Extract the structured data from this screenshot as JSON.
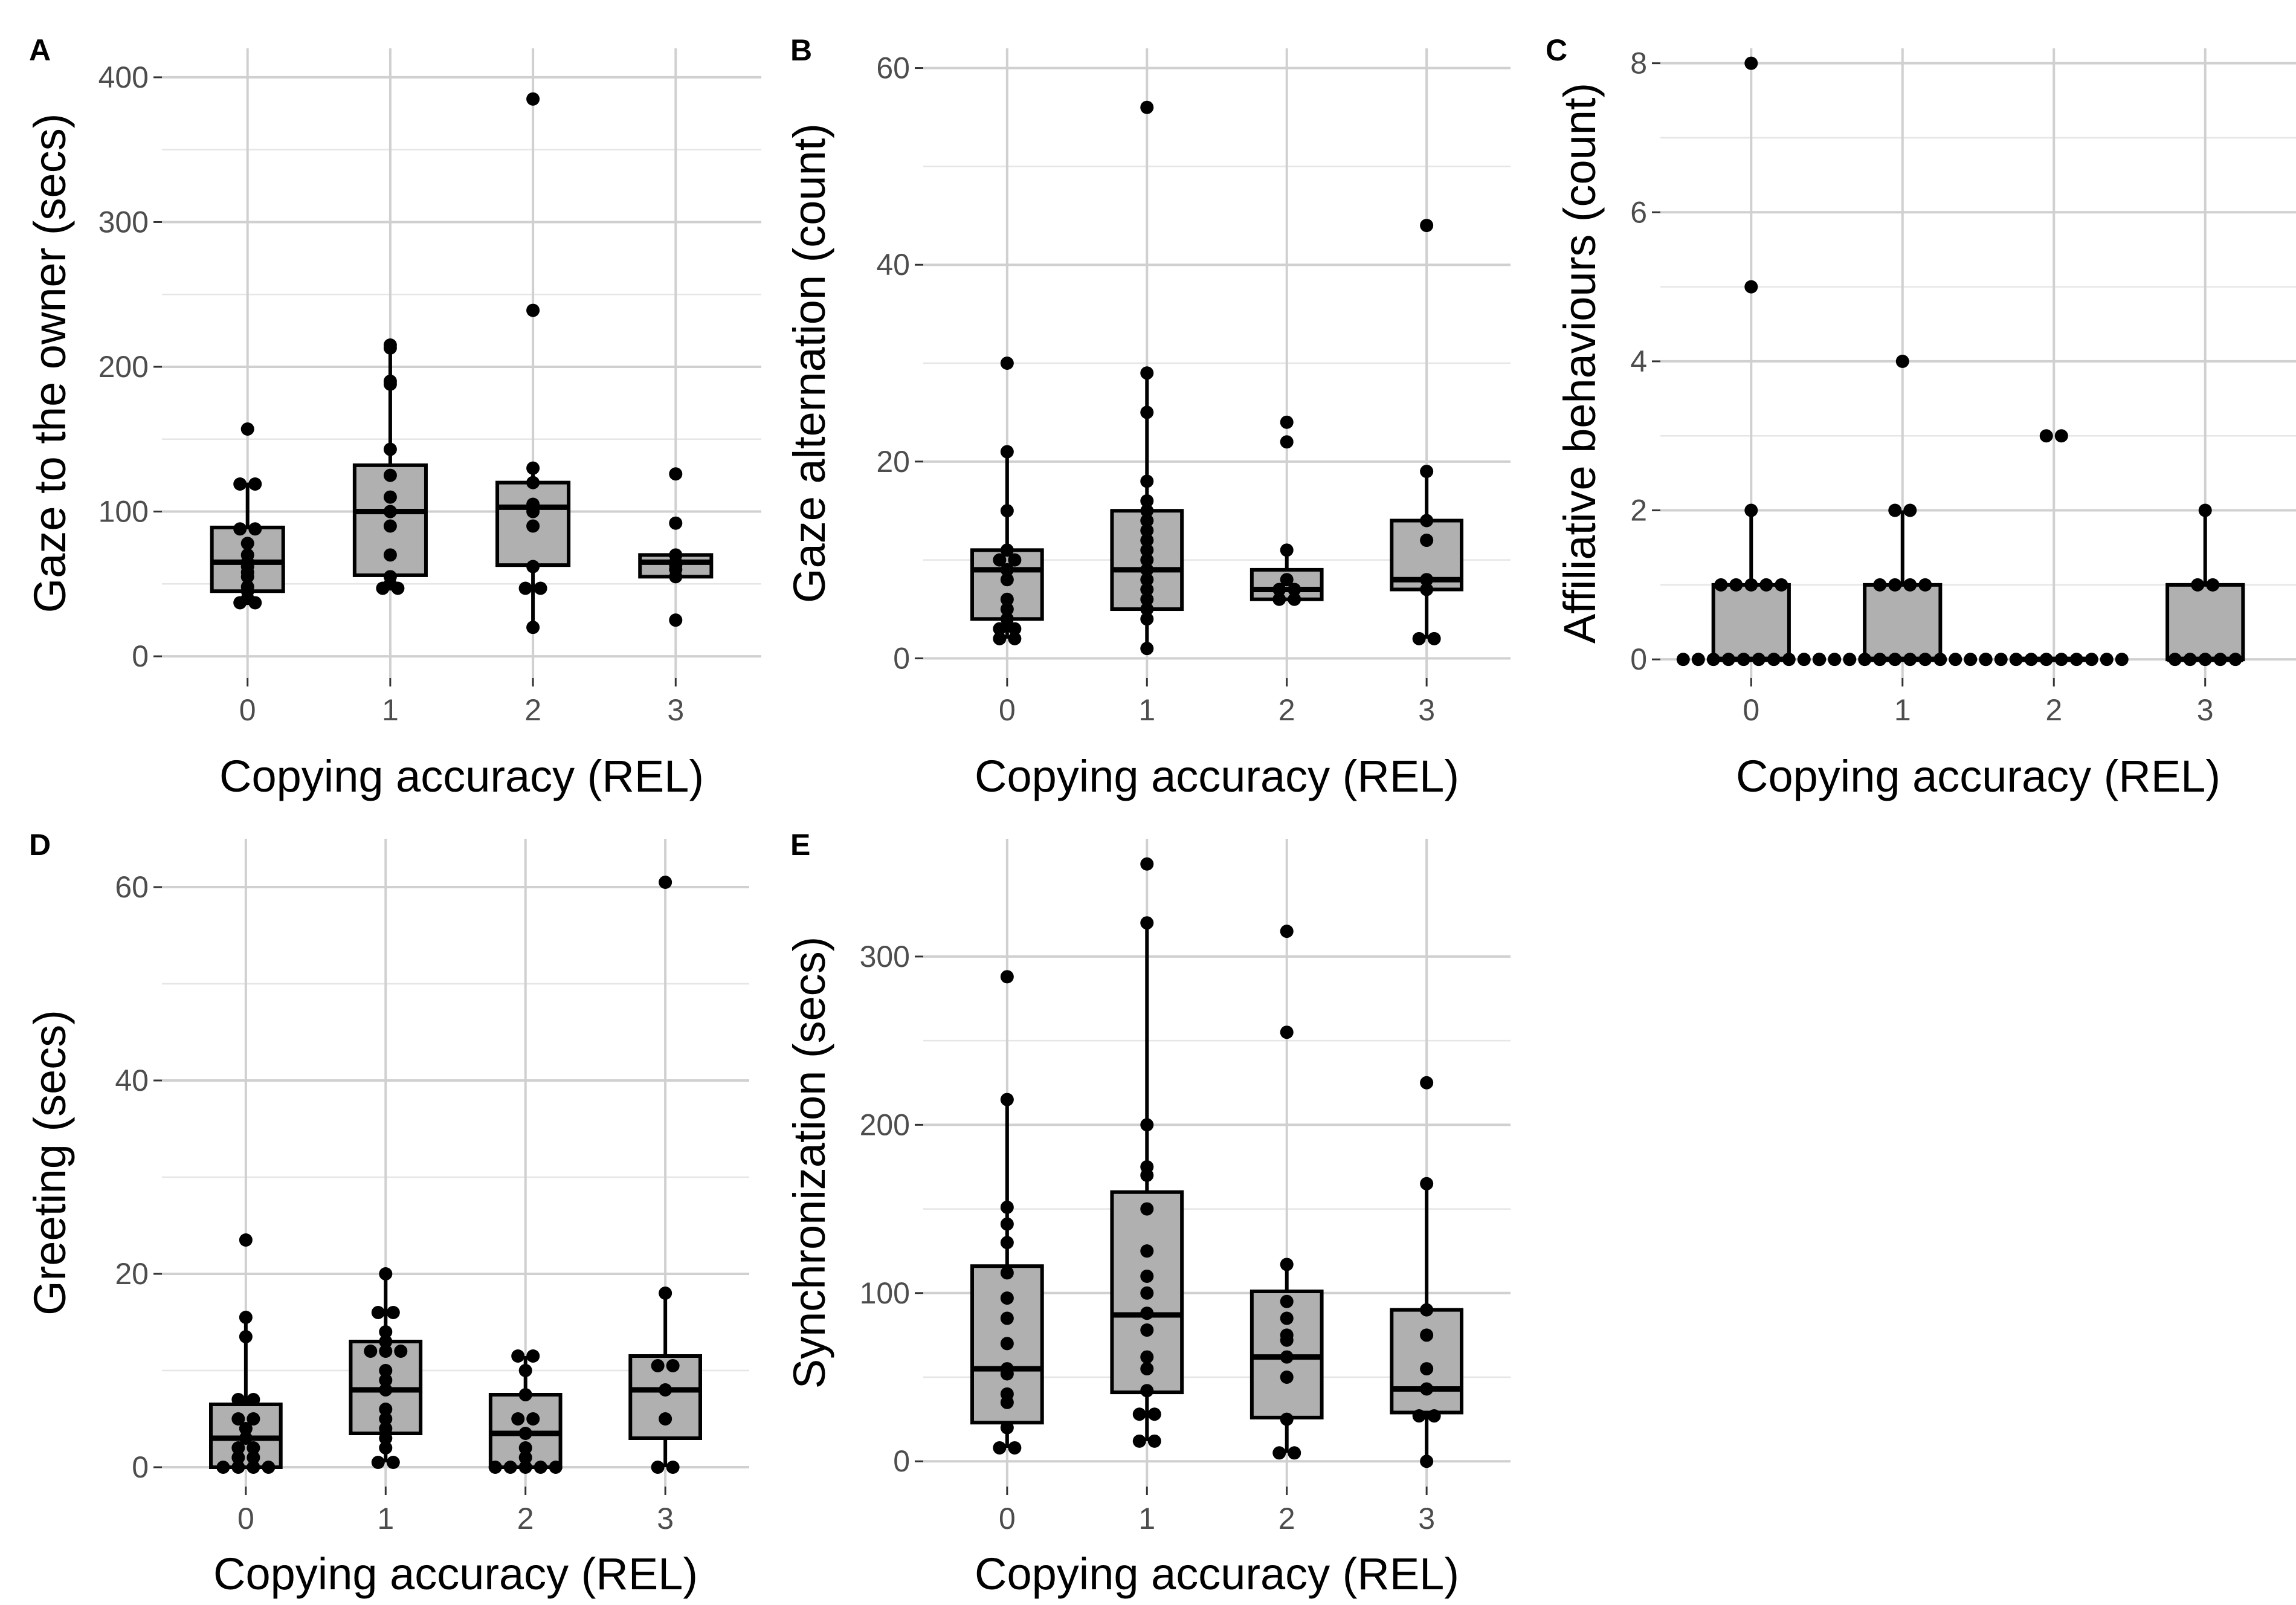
{
  "chart_data": [
    {
      "id": "A",
      "panel_label": "A",
      "type": "boxplot",
      "xlabel": "Copying accuracy (REL)",
      "ylabel": "Gaze to the owner (secs)",
      "categories": [
        "0",
        "1",
        "2",
        "3"
      ],
      "ylim": [
        -15,
        420
      ],
      "yticks": [
        0,
        100,
        200,
        300,
        400
      ],
      "boxes": [
        {
          "q1": 45,
          "median": 65,
          "q3": 89,
          "wlow": 37,
          "whigh": 120
        },
        {
          "q1": 56,
          "median": 100,
          "q3": 132,
          "wlow": 47,
          "whigh": 215
        },
        {
          "q1": 63,
          "median": 103,
          "q3": 120,
          "wlow": 20,
          "whigh": 130
        },
        {
          "q1": 55,
          "median": 65,
          "q3": 70,
          "wlow": 55,
          "whigh": 70
        }
      ],
      "points": [
        [
          37,
          37,
          40,
          45,
          48,
          55,
          58,
          62,
          65,
          70,
          78,
          88,
          88,
          119,
          119,
          157
        ],
        [
          47,
          47,
          50,
          55,
          70,
          90,
          100,
          110,
          125,
          143,
          188,
          190,
          213,
          215
        ],
        [
          20,
          47,
          47,
          62,
          90,
          100,
          103,
          105,
          120,
          130,
          239,
          385
        ],
        [
          25,
          55,
          60,
          63,
          65,
          70,
          92,
          126
        ]
      ]
    },
    {
      "id": "B",
      "panel_label": "B",
      "type": "boxplot",
      "xlabel": "Copying accuracy (REL)",
      "ylabel": "Gaze alternation (count)",
      "categories": [
        "0",
        "1",
        "2",
        "3"
      ],
      "ylim": [
        -2,
        62
      ],
      "yticks": [
        0,
        20,
        40,
        60
      ],
      "boxes": [
        {
          "q1": 4,
          "median": 9,
          "q3": 11,
          "wlow": 2,
          "whigh": 21
        },
        {
          "q1": 5,
          "median": 9,
          "q3": 15,
          "wlow": 1,
          "whigh": 29
        },
        {
          "q1": 6,
          "median": 7,
          "q3": 9,
          "wlow": 6,
          "whigh": 11
        },
        {
          "q1": 7,
          "median": 8,
          "q3": 14,
          "wlow": 2,
          "whigh": 19
        }
      ],
      "points": [
        [
          2,
          2,
          3,
          3,
          4,
          5,
          6,
          8,
          9,
          10,
          10,
          11,
          15,
          21,
          30
        ],
        [
          1,
          4,
          5,
          6,
          7,
          8,
          9,
          10,
          11,
          12,
          13,
          14,
          15,
          16,
          18,
          25,
          29,
          56
        ],
        [
          6,
          6,
          7,
          7,
          8,
          11,
          22,
          24
        ],
        [
          2,
          2,
          7,
          8,
          12,
          14,
          19,
          44
        ]
      ]
    },
    {
      "id": "C",
      "panel_label": "C",
      "type": "boxplot",
      "xlabel": "Copying accuracy (REL)",
      "ylabel": "Affiliative behaviours (count)",
      "categories": [
        "0",
        "1",
        "2",
        "3"
      ],
      "ylim": [
        -0.25,
        8.2
      ],
      "yticks": [
        0,
        2,
        4,
        6,
        8
      ],
      "boxes": [
        {
          "q1": 0,
          "median": 0,
          "q3": 1,
          "wlow": 0,
          "whigh": 2
        },
        {
          "q1": 0,
          "median": 0,
          "q3": 1,
          "wlow": 0,
          "whigh": 2
        },
        {
          "q1": 0,
          "median": 0,
          "q3": 0,
          "wlow": 0,
          "whigh": 0
        },
        {
          "q1": 0,
          "median": 0,
          "q3": 1,
          "wlow": 0,
          "whigh": 2
        }
      ],
      "points": [
        [
          0,
          0,
          0,
          0,
          0,
          0,
          0,
          0,
          0,
          0,
          1,
          1,
          1,
          1,
          1,
          2,
          5,
          8
        ],
        [
          0,
          0,
          0,
          0,
          0,
          0,
          0,
          0,
          0,
          0,
          0,
          0,
          1,
          1,
          1,
          1,
          2,
          2,
          4
        ],
        [
          0,
          0,
          0,
          0,
          0,
          0,
          0,
          0,
          0,
          0,
          3,
          3
        ],
        [
          0,
          0,
          0,
          0,
          0,
          1,
          1,
          2
        ]
      ]
    },
    {
      "id": "D",
      "panel_label": "D",
      "type": "boxplot",
      "xlabel": "Copying accuracy (REL)",
      "ylabel": "Greeting (secs)",
      "categories": [
        "0",
        "1",
        "2",
        "3"
      ],
      "ylim": [
        -2,
        65
      ],
      "yticks": [
        0,
        20,
        40,
        60
      ],
      "boxes": [
        {
          "q1": 0,
          "median": 3,
          "q3": 6.5,
          "wlow": 0,
          "whigh": 15.5
        },
        {
          "q1": 3.5,
          "median": 8,
          "q3": 13,
          "wlow": 0.5,
          "whigh": 20
        },
        {
          "q1": 0,
          "median": 3.5,
          "q3": 7.5,
          "wlow": 0,
          "whigh": 11.5
        },
        {
          "q1": 3,
          "median": 8,
          "q3": 11.5,
          "wlow": 0,
          "whigh": 18
        }
      ],
      "points": [
        [
          0,
          0,
          0,
          0,
          1,
          1,
          2,
          2,
          3,
          4,
          5,
          5,
          7,
          7,
          13.5,
          15.5,
          23.5
        ],
        [
          0.5,
          0.5,
          2,
          3,
          4,
          5,
          6,
          8,
          9,
          10,
          12,
          12,
          12,
          13,
          14,
          16,
          16,
          20
        ],
        [
          0,
          0,
          0,
          0,
          0,
          1,
          2,
          3.5,
          5,
          5,
          7.5,
          10,
          11.5,
          11.5
        ],
        [
          0,
          0,
          5,
          8,
          10.5,
          10.5,
          18,
          60.5
        ]
      ]
    },
    {
      "id": "E",
      "panel_label": "E",
      "type": "boxplot",
      "xlabel": "Copying accuracy (REL)",
      "ylabel": "Synchronization (secs)",
      "categories": [
        "0",
        "1",
        "2",
        "3"
      ],
      "ylim": [
        -15,
        370
      ],
      "yticks": [
        0,
        100,
        200,
        300
      ],
      "boxes": [
        {
          "q1": 23,
          "median": 55,
          "q3": 116,
          "wlow": 8,
          "whigh": 215
        },
        {
          "q1": 41,
          "median": 87,
          "q3": 160,
          "wlow": 12,
          "whigh": 320
        },
        {
          "q1": 26,
          "median": 62,
          "q3": 101,
          "wlow": 5,
          "whigh": 117
        },
        {
          "q1": 29,
          "median": 43,
          "q3": 90,
          "wlow": 0,
          "whigh": 165
        }
      ],
      "points": [
        [
          8,
          8,
          20,
          35,
          40,
          52,
          55,
          70,
          85,
          97,
          112,
          130,
          141,
          151,
          215,
          288
        ],
        [
          12,
          12,
          28,
          28,
          42,
          55,
          62,
          78,
          88,
          100,
          110,
          125,
          150,
          170,
          175,
          200,
          320,
          355
        ],
        [
          5,
          5,
          25,
          50,
          62,
          72,
          75,
          85,
          95,
          117,
          255,
          315
        ],
        [
          0,
          27,
          27,
          43,
          55,
          75,
          90,
          165,
          225
        ]
      ]
    }
  ]
}
